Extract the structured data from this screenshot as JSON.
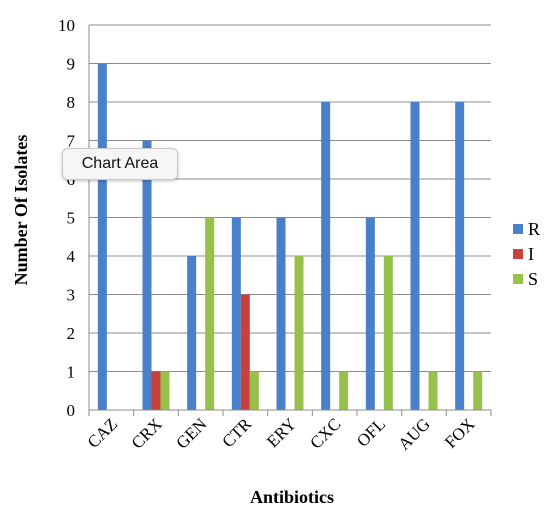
{
  "tooltip": "Chart Area",
  "chart_data": {
    "type": "bar",
    "xlabel": "Antibiotics",
    "ylabel": "Number Of Isolates",
    "ylim": [
      0,
      10
    ],
    "yticks": [
      0,
      1,
      2,
      3,
      4,
      5,
      6,
      7,
      8,
      9,
      10
    ],
    "grid": true,
    "legend": "right",
    "categories": [
      "CAZ",
      "CRX",
      "GEN",
      "CTR",
      "ERY",
      "CXC",
      "OFL",
      "AUG",
      "FOX"
    ],
    "series": [
      {
        "name": "R",
        "color": "#4a7fc9",
        "values": [
          9,
          7,
          4,
          5,
          5,
          8,
          5,
          8,
          8
        ]
      },
      {
        "name": "I",
        "color": "#c9403d",
        "values": [
          0,
          1,
          0,
          3,
          0,
          0,
          0,
          0,
          0
        ]
      },
      {
        "name": "S",
        "color": "#98c04d",
        "values": [
          0,
          1,
          5,
          1,
          4,
          1,
          4,
          1,
          1
        ]
      }
    ]
  }
}
